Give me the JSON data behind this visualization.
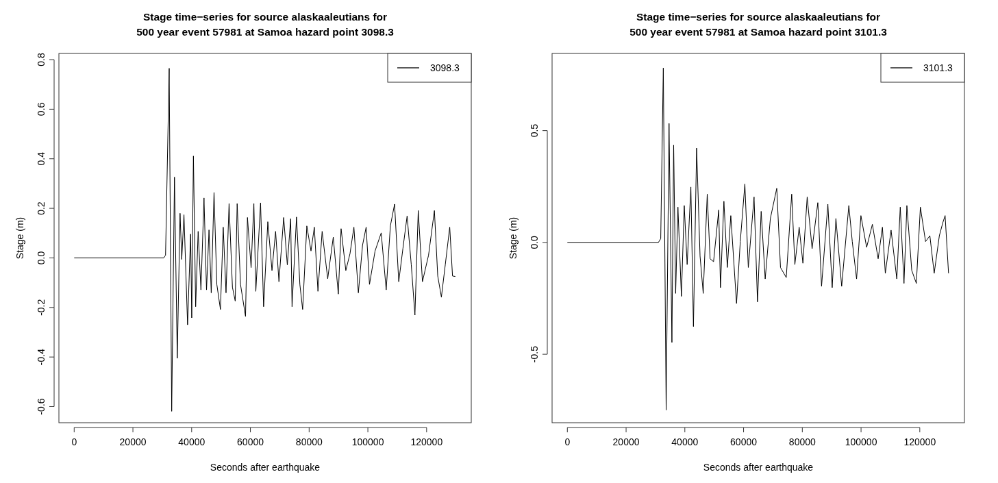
{
  "chart_data": [
    {
      "type": "line",
      "title": "Stage time−series for source alaskaaleutians for\n500 year event 57981 at Samoa hazard point 3098.3",
      "xlabel": "Seconds after earthquake",
      "ylabel": "Stage (m)",
      "xlim": [
        -5200,
        135200
      ],
      "ylim": [
        -0.665,
        0.825
      ],
      "xticks": [
        0,
        20000,
        40000,
        60000,
        80000,
        100000,
        120000
      ],
      "yticks": [
        {
          "value": -0.6,
          "label": "-0.6"
        },
        {
          "value": -0.4,
          "label": "-0.4"
        },
        {
          "value": -0.2,
          "label": "-0.2"
        },
        {
          "value": 0,
          "label": "0.0"
        },
        {
          "value": 0.2,
          "label": "0.2"
        },
        {
          "value": 0.4,
          "label": "0.4"
        },
        {
          "value": 0.6,
          "label": "0.6"
        },
        {
          "value": 0.8,
          "label": "0.8"
        }
      ],
      "legend": "top right",
      "grid": false,
      "x": [
        0,
        30500,
        31110,
        32350,
        33200,
        34150,
        35100,
        36050,
        36620,
        37380,
        38610,
        39650,
        40030,
        40600,
        41360,
        42210,
        43160,
        44200,
        45060,
        45910,
        46670,
        47620,
        48570,
        49800,
        50750,
        51700,
        52740,
        53880,
        54830,
        55490,
        56630,
        58340,
        59000,
        60240,
        61180,
        61850,
        63460,
        64500,
        65930,
        67350,
        68580,
        69720,
        71330,
        72570,
        73710,
        74180,
        75700,
        76840,
        77790,
        79210,
        80630,
        81770,
        83000,
        84430,
        86320,
        88220,
        89930,
        90880,
        92490,
        93910,
        95240,
        96760,
        98180,
        99410,
        100550,
        102450,
        104540,
        106240,
        107660,
        109090,
        110510,
        111940,
        113360,
        114780,
        116020,
        117150,
        118580,
        120660,
        122650,
        123790,
        125030,
        126350,
        127870,
        128820,
        129770
      ],
      "series": [
        {
          "name": "3098.3",
          "color": "#000000",
          "values": [
            0,
            0,
            0.011,
            0.765,
            -0.619,
            0.326,
            -0.405,
            0.18,
            -0.006,
            0.174,
            -0.27,
            0.096,
            -0.242,
            0.411,
            -0.197,
            0.107,
            -0.129,
            0.242,
            -0.129,
            0.113,
            -0.141,
            0.264,
            -0.107,
            -0.208,
            0.124,
            -0.141,
            0.219,
            -0.118,
            -0.174,
            0.219,
            -0.107,
            -0.236,
            0.163,
            -0.039,
            0.219,
            -0.135,
            0.222,
            -0.197,
            0.146,
            -0.051,
            0.107,
            -0.096,
            0.163,
            -0.028,
            0.158,
            -0.197,
            0.165,
            -0.107,
            -0.208,
            0.129,
            0.028,
            0.124,
            -0.135,
            0.107,
            -0.084,
            0.084,
            -0.146,
            0.118,
            -0.051,
            0.017,
            0.124,
            -0.141,
            0.051,
            0.124,
            -0.107,
            0.028,
            0.101,
            -0.129,
            0.129,
            0.217,
            -0.096,
            0.039,
            0.169,
            -0.028,
            -0.231,
            0.191,
            -0.096,
            0.011,
            0.191,
            -0.073,
            -0.158,
            -0.028,
            0.124,
            -0.073,
            -0.075
          ]
        }
      ]
    },
    {
      "type": "line",
      "title": "Stage time−series for source alaskaaleutians for\n500 year event 57981 at Samoa hazard point 3101.3",
      "xlabel": "Seconds after earthquake",
      "ylabel": "Stage (m)",
      "xlim": [
        -5200,
        135200
      ],
      "ylim": [
        -0.806,
        0.845
      ],
      "xticks": [
        0,
        20000,
        40000,
        60000,
        80000,
        100000,
        120000
      ],
      "yticks": [
        {
          "value": -0.5,
          "label": "-0.5"
        },
        {
          "value": 0,
          "label": "0.0"
        },
        {
          "value": 0.5,
          "label": "0.5"
        }
      ],
      "legend": "top right",
      "grid": false,
      "x": [
        0,
        31000,
        31790,
        32670,
        33640,
        34620,
        35600,
        36190,
        36870,
        37650,
        38830,
        39800,
        40790,
        42050,
        42930,
        44010,
        45180,
        46260,
        47630,
        48600,
        49780,
        51540,
        52130,
        53300,
        54470,
        55650,
        57600,
        58880,
        60440,
        61610,
        63570,
        64740,
        65990,
        67360,
        69120,
        71300,
        72570,
        74530,
        76390,
        77460,
        78930,
        80200,
        81660,
        83330,
        85280,
        86550,
        88700,
        90170,
        91440,
        93400,
        95840,
        97010,
        98480,
        99950,
        101900,
        103860,
        105820,
        107280,
        108260,
        110220,
        112170,
        113350,
        114620,
        115600,
        117260,
        118830,
        120200,
        121960,
        123430,
        124900,
        126660,
        127830,
        128620,
        129790
      ],
      "series": [
        {
          "name": "3101.3",
          "color": "#000000",
          "values": [
            0,
            0,
            0.017,
            0.78,
            -0.749,
            0.532,
            -0.447,
            0.435,
            -0.228,
            0.158,
            -0.241,
            0.165,
            -0.099,
            0.248,
            -0.376,
            0.422,
            -0.061,
            -0.228,
            0.216,
            -0.073,
            -0.086,
            0.145,
            -0.202,
            0.184,
            -0.112,
            0.12,
            -0.273,
            0.004,
            0.261,
            -0.112,
            0.203,
            -0.266,
            0.139,
            -0.163,
            0.107,
            0.242,
            -0.112,
            -0.157,
            0.216,
            -0.099,
            0.068,
            -0.093,
            0.203,
            -0.028,
            0.178,
            -0.196,
            0.171,
            -0.202,
            0.107,
            -0.196,
            0.165,
            0.004,
            -0.163,
            0.12,
            -0.022,
            0.081,
            -0.073,
            0.068,
            -0.138,
            0.055,
            -0.163,
            0.158,
            -0.183,
            0.165,
            -0.125,
            -0.183,
            0.158,
            0.004,
            0.03,
            -0.138,
            0.03,
            0.088,
            0.12,
            -0.138
          ]
        }
      ]
    }
  ]
}
